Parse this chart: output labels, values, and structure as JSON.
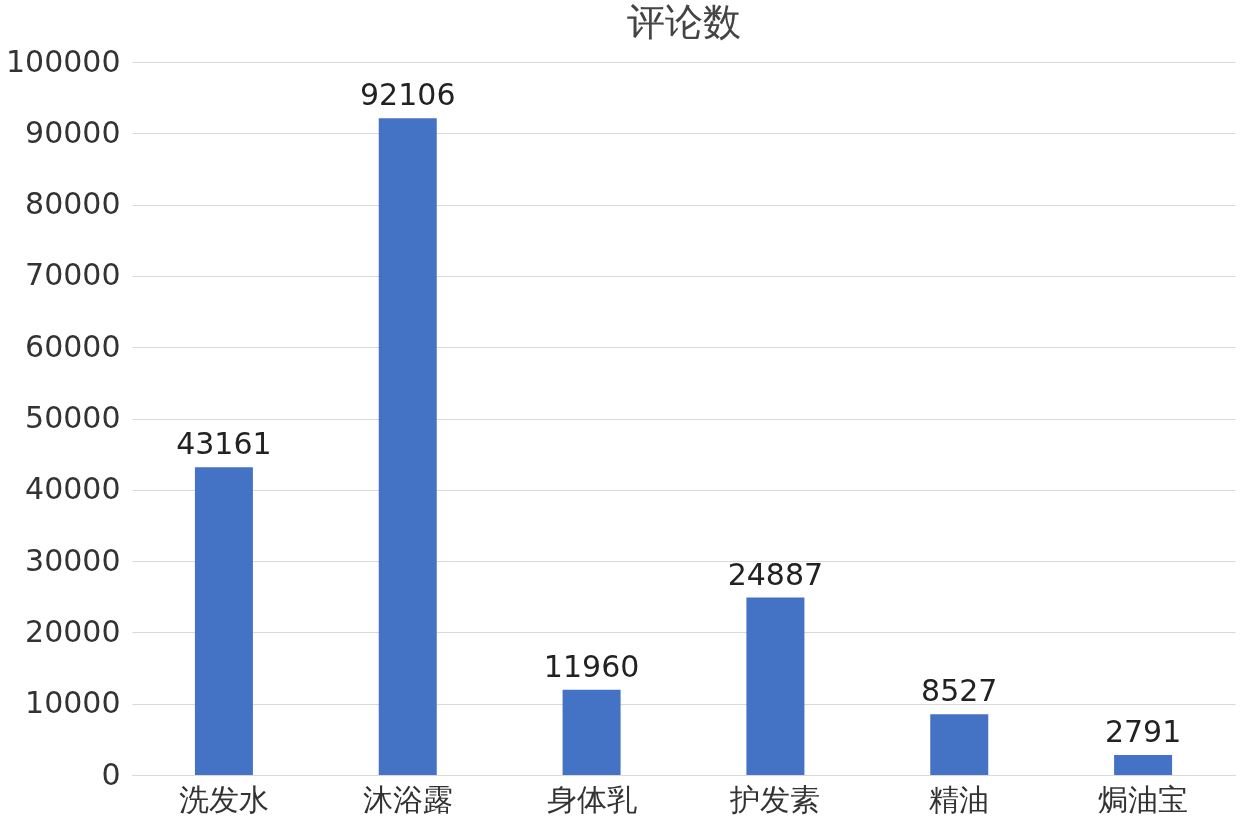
{
  "chart_data": {
    "type": "bar",
    "title": "评论数",
    "categories": [
      "洗发水",
      "沐浴露",
      "身体乳",
      "护发素",
      "精油",
      "焗油宝"
    ],
    "series": [
      {
        "color": "#4472c4",
        "values": [
          43161,
          92106,
          11960,
          24887,
          8527,
          2791
        ]
      }
    ],
    "ylim": [
      0,
      100000
    ],
    "yticks": [
      0,
      10000,
      20000,
      30000,
      40000,
      50000,
      60000,
      70000,
      80000,
      90000,
      100000
    ],
    "grid": "y",
    "data_labels": true
  }
}
